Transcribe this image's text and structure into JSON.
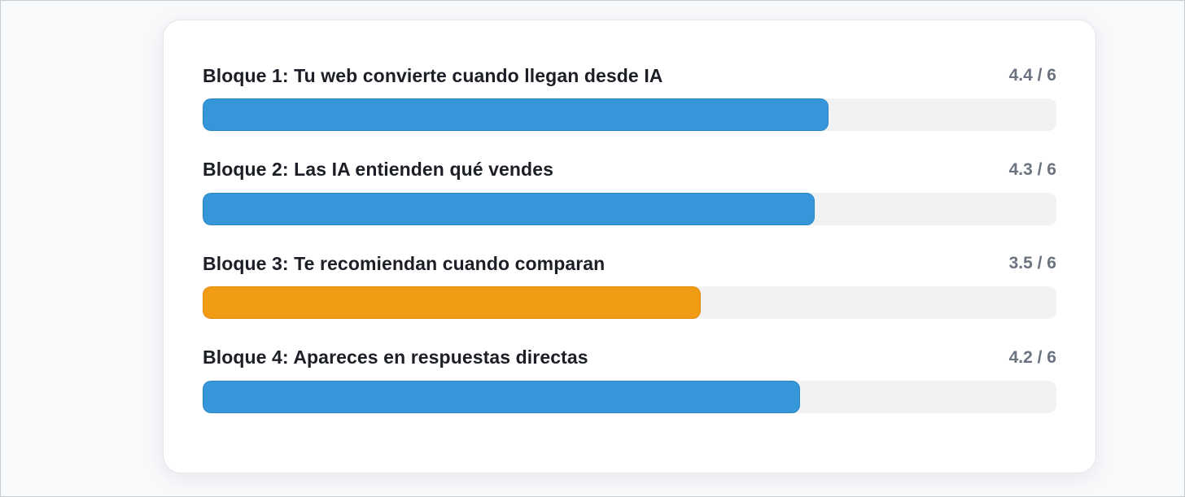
{
  "blocks": [
    {
      "title": "Bloque 1: Tu web convierte cuando llegan desde IA",
      "score_text": "4.4 / 6",
      "score": 4.4,
      "max": 6,
      "color": "#3597da",
      "border_color": "#2c86c4"
    },
    {
      "title": "Bloque 2: Las IA entienden qué vendes",
      "score_text": "4.3 / 6",
      "score": 4.3,
      "max": 6,
      "color": "#3597da",
      "border_color": "#2c86c4"
    },
    {
      "title": "Bloque 3: Te recomiendan cuando comparan",
      "score_text": "3.5 / 6",
      "score": 3.5,
      "max": 6,
      "color": "#f29c16",
      "border_color": "#e08d0c"
    },
    {
      "title": "Bloque 4: Apareces en respuestas directas",
      "score_text": "4.2 / 6",
      "score": 4.2,
      "max": 6,
      "color": "#3597da",
      "border_color": "#2c86c4"
    }
  ]
}
